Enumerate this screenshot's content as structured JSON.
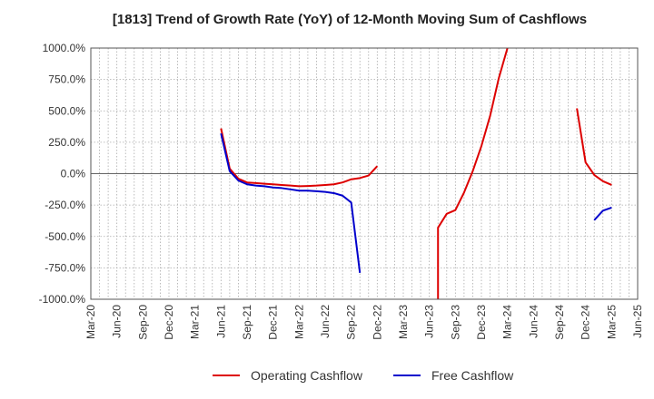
{
  "chart_data": {
    "type": "line",
    "title": "[1813]  Trend of Growth Rate (YoY) of 12-Month Moving Sum of Cashflows",
    "xlabel": "",
    "ylabel": "",
    "ylim": [
      -1000,
      1000
    ],
    "y_unit": "%",
    "y_ticks": [
      "1000.0%",
      "750.0%",
      "500.0%",
      "250.0%",
      "0.0%",
      "-250.0%",
      "-500.0%",
      "-750.0%",
      "-1000.0%"
    ],
    "y_tick_values": [
      1000,
      750,
      500,
      250,
      0,
      -250,
      -500,
      -750,
      -1000
    ],
    "x_range": [
      "Mar-20",
      "Jun-25"
    ],
    "x_ticks": [
      "Mar-20",
      "Jun-20",
      "Sep-20",
      "Dec-20",
      "Mar-21",
      "Jun-21",
      "Sep-21",
      "Dec-21",
      "Mar-22",
      "Jun-22",
      "Sep-22",
      "Dec-22",
      "Mar-23",
      "Jun-23",
      "Sep-23",
      "Dec-23",
      "Mar-24",
      "Jun-24",
      "Sep-24",
      "Dec-24",
      "Mar-25",
      "Jun-25"
    ],
    "grid": true,
    "legend_position": "bottom",
    "series": [
      {
        "name": "Operating Cashflow",
        "color": "#dd0000",
        "segments": [
          [
            [
              "Jun-21",
              360
            ],
            [
              "Jul-21",
              40
            ],
            [
              "Aug-21",
              -40
            ],
            [
              "Sep-21",
              -70
            ],
            [
              "Oct-21",
              -75
            ],
            [
              "Nov-21",
              -80
            ],
            [
              "Dec-21",
              -85
            ],
            [
              "Jan-22",
              -90
            ],
            [
              "Feb-22",
              -95
            ],
            [
              "Mar-22",
              -100
            ],
            [
              "Apr-22",
              -98
            ],
            [
              "May-22",
              -95
            ],
            [
              "Jun-22",
              -90
            ],
            [
              "Jul-22",
              -85
            ],
            [
              "Aug-22",
              -70
            ],
            [
              "Sep-22",
              -45
            ],
            [
              "Oct-22",
              -35
            ],
            [
              "Nov-22",
              -15
            ],
            [
              "Dec-22",
              60
            ]
          ],
          [
            [
              "Jul-23",
              -1000
            ],
            [
              "Jul-23",
              -430
            ],
            [
              "Aug-23",
              -320
            ],
            [
              "Sep-23",
              -290
            ],
            [
              "Oct-23",
              -150
            ],
            [
              "Nov-23",
              20
            ],
            [
              "Dec-23",
              220
            ],
            [
              "Jan-24",
              460
            ],
            [
              "Feb-24",
              760
            ],
            [
              "Mar-24",
              1000
            ]
          ],
          [
            [
              "Nov-24",
              520
            ],
            [
              "Dec-24",
              90
            ],
            [
              "Jan-25",
              -10
            ],
            [
              "Feb-25",
              -60
            ],
            [
              "Mar-25",
              -90
            ]
          ]
        ]
      },
      {
        "name": "Free Cashflow",
        "color": "#0000cc",
        "segments": [
          [
            [
              "Jun-21",
              320
            ],
            [
              "Jul-21",
              20
            ],
            [
              "Aug-21",
              -55
            ],
            [
              "Sep-21",
              -85
            ],
            [
              "Oct-21",
              -95
            ],
            [
              "Nov-21",
              -100
            ],
            [
              "Dec-21",
              -110
            ],
            [
              "Jan-22",
              -115
            ],
            [
              "Feb-22",
              -125
            ],
            [
              "Mar-22",
              -135
            ],
            [
              "Apr-22",
              -135
            ],
            [
              "May-22",
              -140
            ],
            [
              "Jun-22",
              -145
            ],
            [
              "Jul-22",
              -155
            ],
            [
              "Aug-22",
              -175
            ],
            [
              "Sep-22",
              -230
            ],
            [
              "Oct-22",
              -790
            ]
          ],
          [
            [
              "Jan-25",
              -370
            ],
            [
              "Feb-25",
              -295
            ],
            [
              "Mar-25",
              -270
            ]
          ]
        ]
      }
    ]
  }
}
